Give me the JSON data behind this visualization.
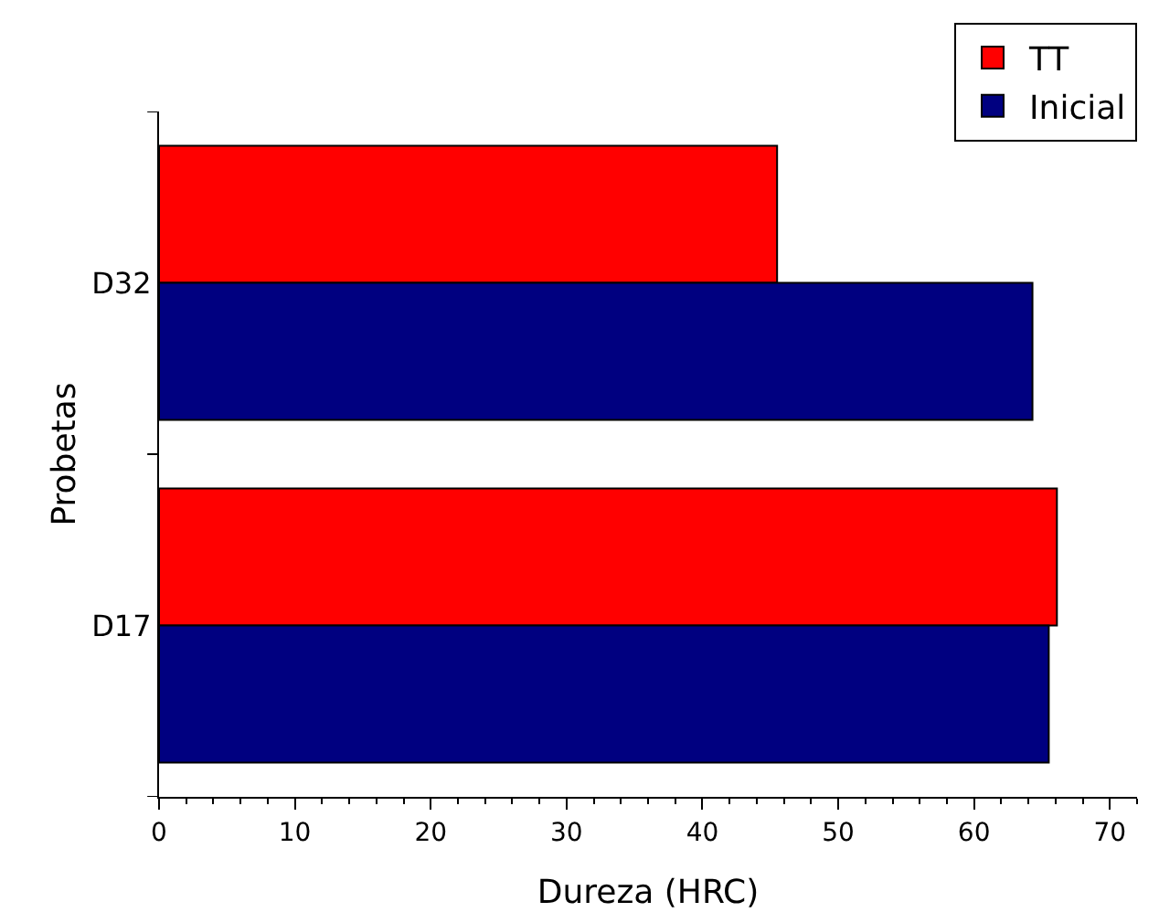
{
  "chart_data": {
    "type": "bar",
    "orientation": "horizontal",
    "xlabel": "Dureza (HRC)",
    "ylabel": "Probetas",
    "categories": [
      "D32",
      "D17"
    ],
    "series": [
      {
        "name": "TT",
        "color": "#ff0000",
        "values": [
          45.5,
          66.1
        ]
      },
      {
        "name": "Inicial",
        "color": "#000080",
        "values": [
          64.3,
          65.5
        ]
      }
    ],
    "xlim": [
      0,
      72
    ],
    "xticks": [
      0,
      10,
      20,
      30,
      40,
      50,
      60,
      70
    ],
    "grid": false,
    "legend": "top right"
  }
}
